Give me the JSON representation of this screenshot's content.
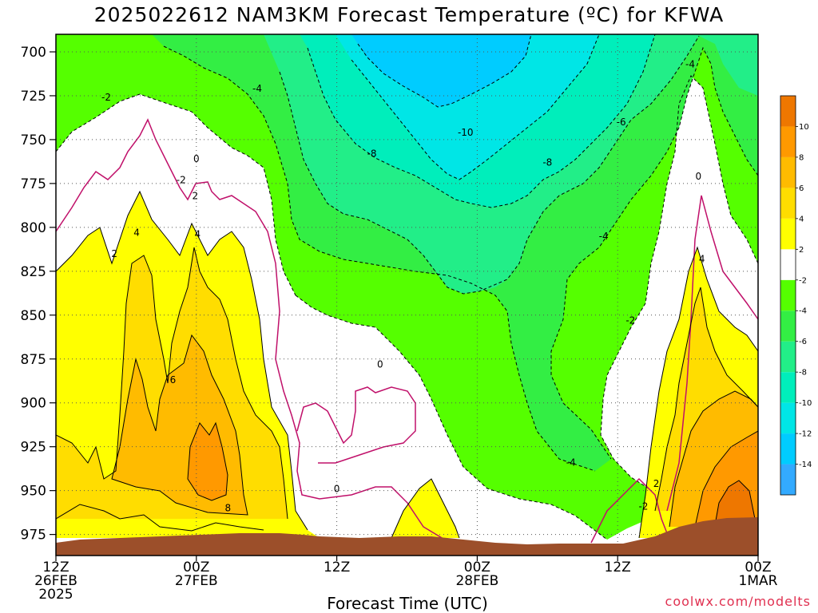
{
  "chart_data": {
    "type": "heatmap",
    "title": "2025022612 NAM3KM Forecast Temperature (ºC) for KFWA",
    "xlabel": "Forecast Time (UTC)",
    "ylabel": "",
    "credit": "coolwx.com/modelts",
    "y_axis": {
      "label": "",
      "values": [
        700,
        725,
        750,
        775,
        800,
        825,
        850,
        875,
        900,
        925,
        950,
        975
      ],
      "range": [
        690,
        987
      ],
      "inverted": true
    },
    "x_axis": {
      "range_hours": [
        0,
        60
      ],
      "ticks": [
        {
          "hour": 0,
          "lines": [
            "12Z",
            "26FEB",
            "2025"
          ]
        },
        {
          "hour": 12,
          "lines": [
            "00Z",
            "27FEB"
          ]
        },
        {
          "hour": 24,
          "lines": [
            "12Z"
          ]
        },
        {
          "hour": 36,
          "lines": [
            "00Z",
            "28FEB"
          ]
        },
        {
          "hour": 48,
          "lines": [
            "12Z"
          ]
        },
        {
          "hour": 60,
          "lines": [
            "00Z",
            "1MAR"
          ]
        }
      ]
    },
    "grid": true,
    "colorbar": {
      "placement": "right",
      "levels": [
        -16,
        -14,
        -12,
        -10,
        -8,
        -6,
        -4,
        -2,
        2,
        4,
        6,
        8,
        10,
        12
      ],
      "labels": [
        "-14",
        "-12",
        "-10",
        "-8",
        "-6",
        "-4",
        "-2",
        "2",
        "4",
        "6",
        "8",
        "10"
      ],
      "colors": [
        "#33aaff",
        "#00ccff",
        "#00e6e6",
        "#00eebb",
        "#22ee88",
        "#33ee44",
        "#55ff00",
        "#ffffff",
        "#ffff00",
        "#ffdd00",
        "#ffbb00",
        "#ff9900",
        "#ee7700"
      ]
    },
    "contour_labels": [
      {
        "text": "-2",
        "hour": 4.3,
        "hpa": 726
      },
      {
        "text": "-4",
        "hour": 17.2,
        "hpa": 721
      },
      {
        "text": "-4",
        "hour": 54.2,
        "hpa": 707
      },
      {
        "text": "-6",
        "hour": 48.3,
        "hpa": 740
      },
      {
        "text": "-10",
        "hour": 35.0,
        "hpa": 746
      },
      {
        "text": "-8",
        "hour": 27.0,
        "hpa": 758
      },
      {
        "text": "-8",
        "hour": 42.0,
        "hpa": 763
      },
      {
        "text": "0",
        "hour": 12.0,
        "hpa": 761
      },
      {
        "text": "-2",
        "hour": 10.7,
        "hpa": 773
      },
      {
        "text": "2",
        "hour": 11.9,
        "hpa": 782
      },
      {
        "text": "0",
        "hour": 54.9,
        "hpa": 771
      },
      {
        "text": "4",
        "hour": 6.9,
        "hpa": 803
      },
      {
        "text": "4",
        "hour": 12.1,
        "hpa": 804
      },
      {
        "text": "2",
        "hour": 5.0,
        "hpa": 815
      },
      {
        "text": "-4",
        "hour": 46.8,
        "hpa": 805
      },
      {
        "text": "4",
        "hour": 55.2,
        "hpa": 818
      },
      {
        "text": "-2",
        "hour": 49.1,
        "hpa": 853
      },
      {
        "text": "0",
        "hour": 27.7,
        "hpa": 878
      },
      {
        "text": "6",
        "hour": 10.0,
        "hpa": 887
      },
      {
        "text": "0",
        "hour": 24.0,
        "hpa": 949
      },
      {
        "text": "-4",
        "hour": 44.0,
        "hpa": 934
      },
      {
        "text": "8",
        "hour": 14.7,
        "hpa": 960
      },
      {
        "text": "2",
        "hour": 51.3,
        "hpa": 946
      },
      {
        "text": "-2",
        "hour": 50.2,
        "hpa": 959
      }
    ]
  }
}
